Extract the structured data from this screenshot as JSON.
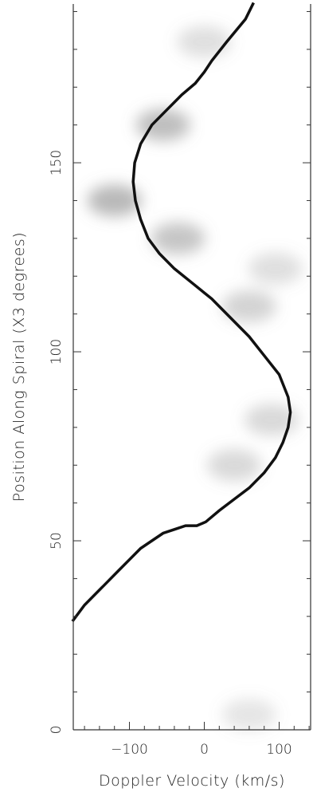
{
  "chart_data": {
    "type": "line",
    "title": "",
    "xlabel": "Doppler Velocity (km/s)",
    "ylabel": "Position Along Spiral (X3 degrees)",
    "xlim": [
      -175,
      142
    ],
    "ylim": [
      0,
      192
    ],
    "x_ticks": [
      -100,
      0,
      100
    ],
    "y_ticks": [
      0,
      50,
      100,
      150
    ],
    "grid": false,
    "background": "grayscale intensity map",
    "series": [
      {
        "type": "line",
        "x": [
          -175,
          -160,
          -145,
          -130,
          -115,
          -100,
          -85,
          -70,
          -55,
          -40,
          -25,
          -10,
          2,
          20,
          40,
          60,
          80,
          95,
          105,
          112,
          115,
          112,
          100,
          80,
          60,
          35,
          10,
          -15,
          -40,
          -60,
          -75,
          -85,
          -92,
          -95,
          -93,
          -85,
          -70,
          -50,
          -30,
          -12,
          0,
          10,
          30,
          55,
          65
        ],
        "y": [
          29,
          33,
          36,
          39,
          42,
          45,
          48,
          50,
          52,
          53,
          54,
          54,
          55,
          58,
          61,
          64,
          68,
          72,
          76,
          80,
          84,
          88,
          94,
          99,
          104,
          109,
          114,
          118,
          122,
          126,
          130,
          135,
          140,
          145,
          150,
          155,
          160,
          164,
          168,
          171,
          174,
          177,
          182,
          188,
          192
        ]
      }
    ],
    "intensity_blobs": [
      {
        "x": -120,
        "y": 140,
        "level": 0.55
      },
      {
        "x": -35,
        "y": 130,
        "level": 0.45
      },
      {
        "x": -55,
        "y": 160,
        "level": 0.5
      },
      {
        "x": 60,
        "y": 112,
        "level": 0.35
      },
      {
        "x": 90,
        "y": 82,
        "level": 0.3
      },
      {
        "x": 40,
        "y": 70,
        "level": 0.3
      },
      {
        "x": 95,
        "y": 122,
        "level": 0.25
      },
      {
        "x": 0,
        "y": 182,
        "level": 0.25
      },
      {
        "x": 60,
        "y": 4,
        "level": 0.2
      }
    ],
    "colors": {
      "curve": "#111111",
      "axis": "#333333",
      "blob": "#808080"
    }
  }
}
